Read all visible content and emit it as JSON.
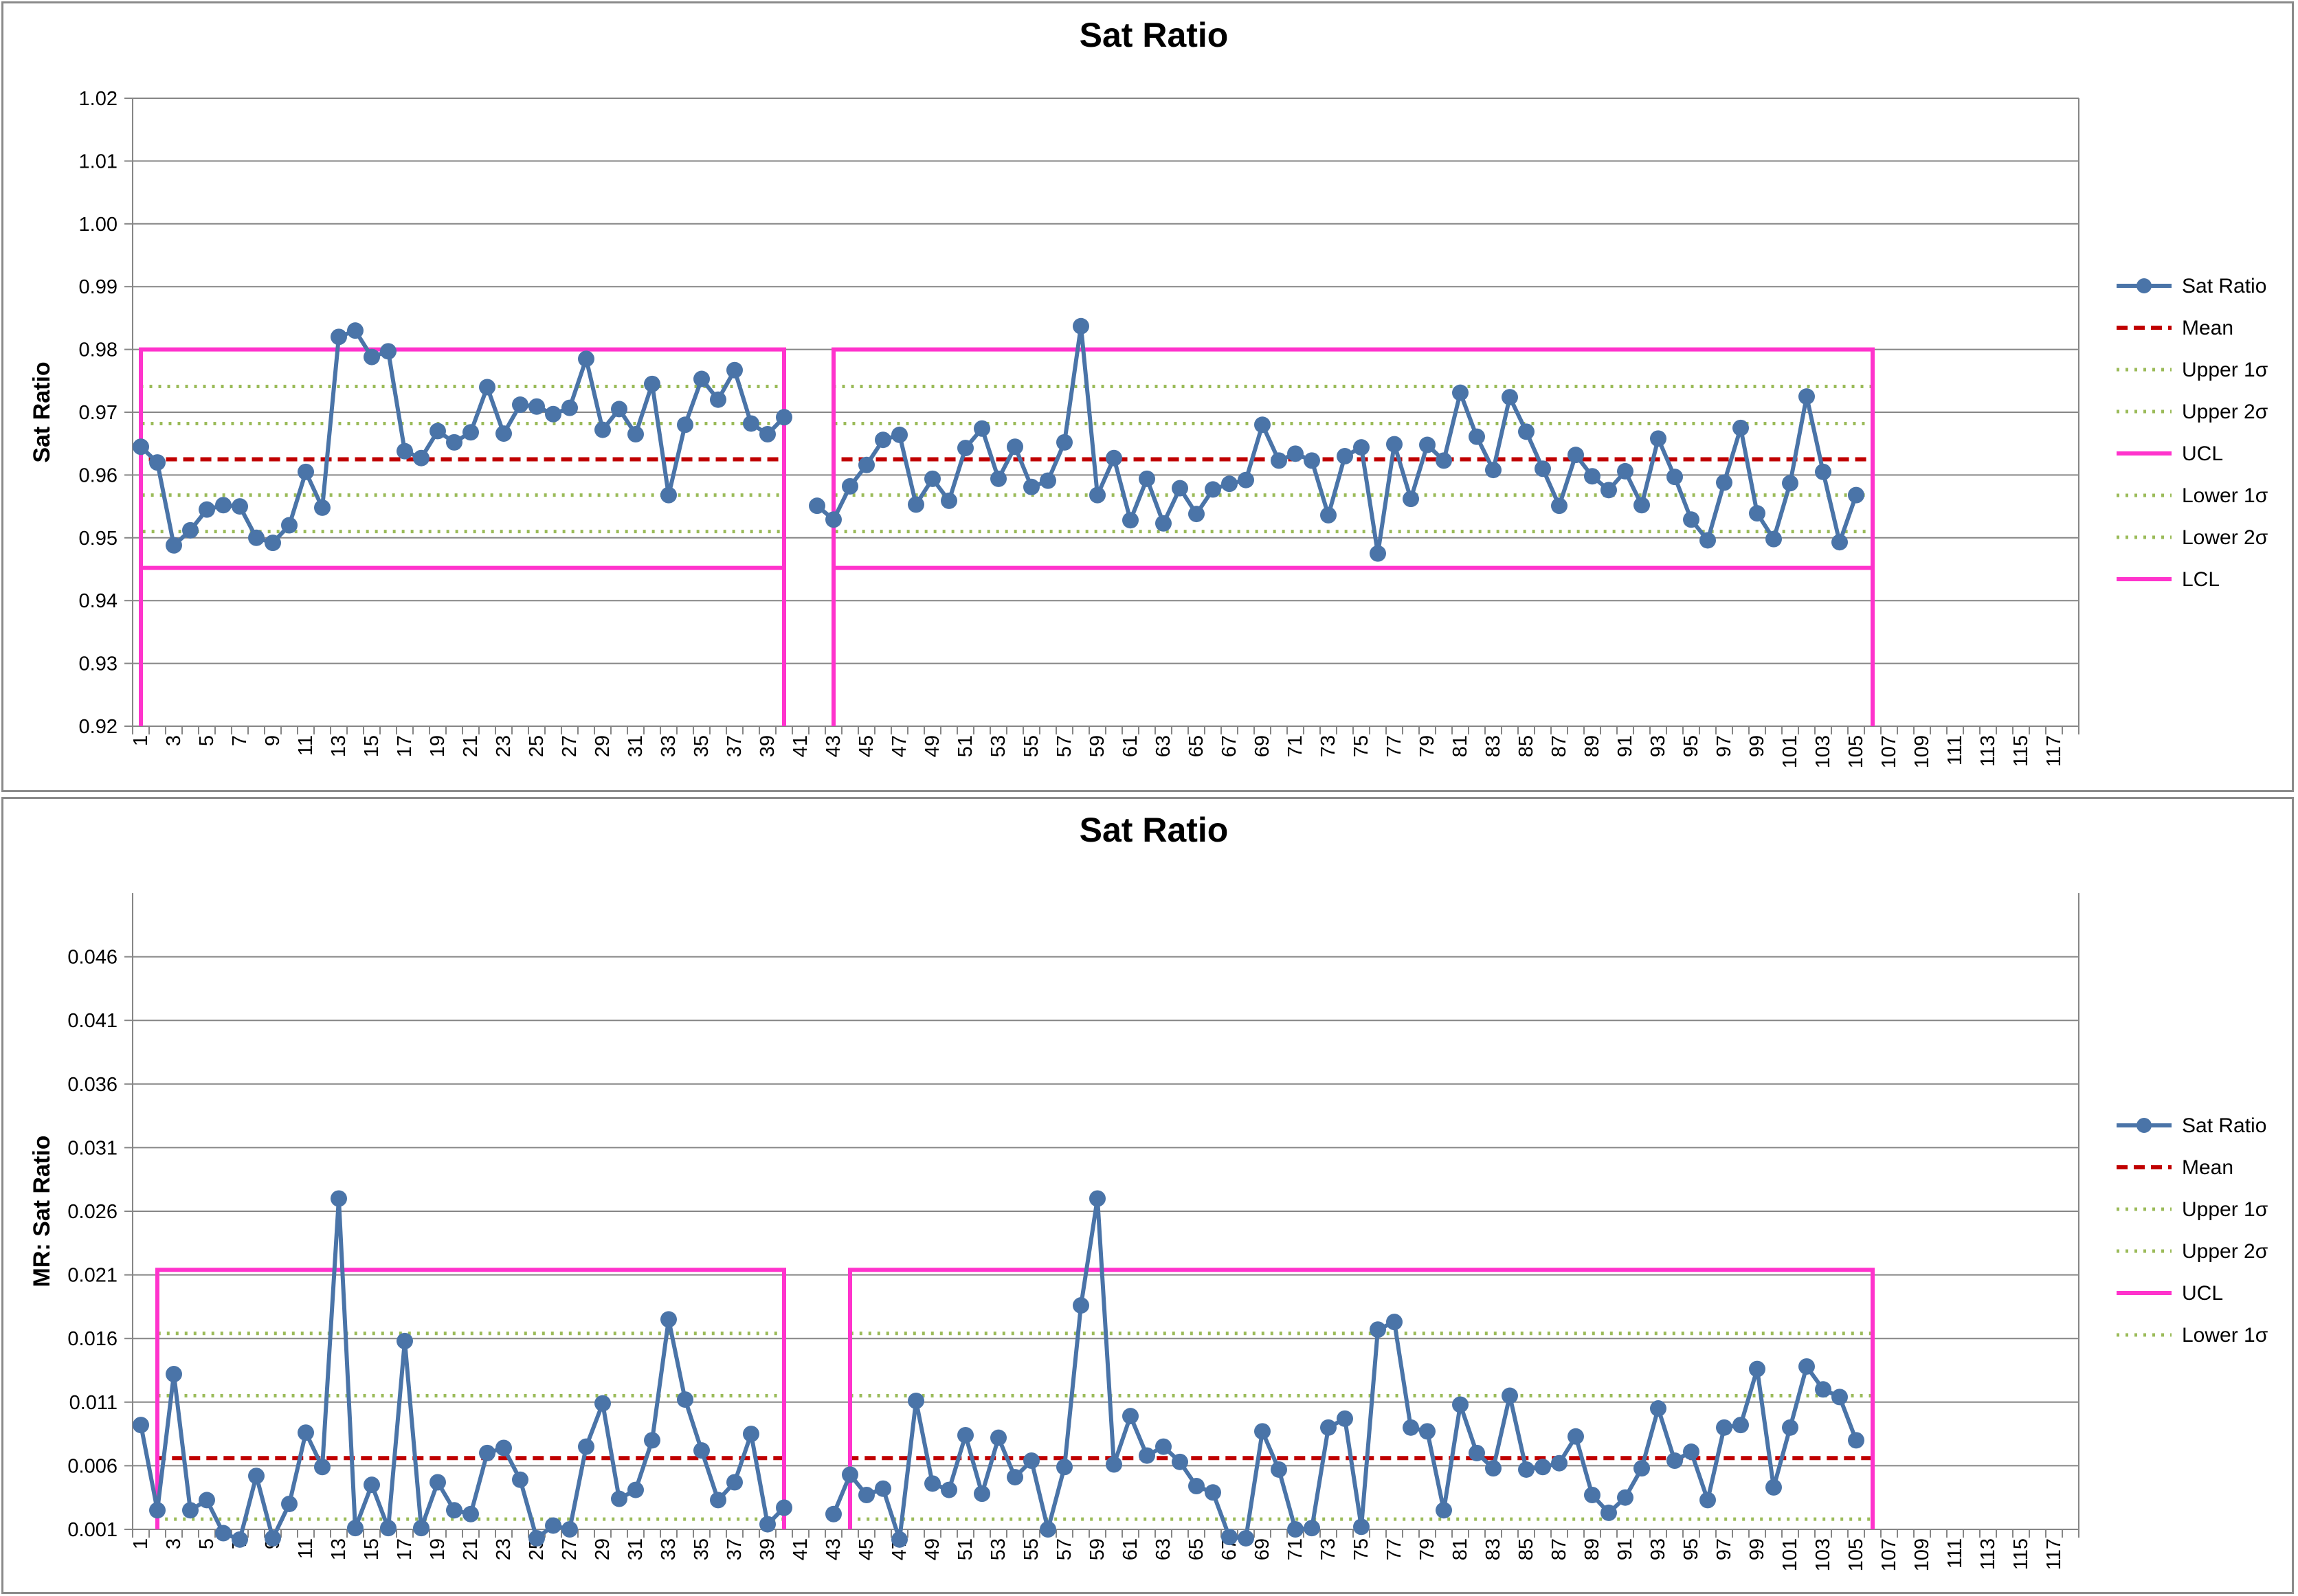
{
  "colors": {
    "series": "#4a74a8",
    "mean": "#c00000",
    "sigma": "#9bbb59",
    "limits": "#ff33cc",
    "grid": "#868686"
  },
  "chart_data": [
    {
      "type": "line",
      "title": "Sat Ratio",
      "ylabel": "Sat Ratio",
      "xlabel": "",
      "ylim": [
        0.92,
        1.02
      ],
      "yticks": [
        "0.92",
        "0.93",
        "0.94",
        "0.95",
        "0.96",
        "0.97",
        "0.98",
        "0.99",
        "1.00",
        "1.01",
        "1.02"
      ],
      "xticks": [
        "1",
        "3",
        "5",
        "7",
        "9",
        "11",
        "13",
        "15",
        "17",
        "19",
        "21",
        "23",
        "25",
        "27",
        "29",
        "31",
        "33",
        "35",
        "37",
        "39",
        "41",
        "43",
        "45",
        "47",
        "49",
        "51",
        "53",
        "55",
        "57",
        "59",
        "61",
        "63",
        "65",
        "67",
        "69",
        "71",
        "73",
        "75",
        "77",
        "79",
        "81",
        "83",
        "85",
        "87",
        "89",
        "91",
        "93",
        "95",
        "97",
        "99",
        "101",
        "103",
        "105",
        "107",
        "109",
        "111",
        "113",
        "115",
        "117"
      ],
      "x_categories": 118,
      "grid": true,
      "legend_position": "right",
      "series": [
        {
          "name": "Sat Ratio",
          "style": "line-markers",
          "segments": [
            {
              "x_start": 1,
              "values": [
                0.9645,
                0.962,
                0.9488,
                0.9512,
                0.9545,
                0.9552,
                0.955,
                0.95,
                0.9492,
                0.952,
                0.9605,
                0.9548,
                0.982,
                0.983,
                0.9788,
                0.9797,
                0.9638,
                0.9627,
                0.967,
                0.9652,
                0.9668,
                0.974,
                0.9666,
                0.9712,
                0.9709,
                0.9697,
                0.9707,
                0.9785,
                0.9672,
                0.9705,
                0.9665,
                0.9745,
                0.9568,
                0.968,
                0.9753,
                0.972,
                0.9767,
                0.9682,
                0.9665,
                0.9692
              ]
            },
            {
              "x_start": 42,
              "values": [
                0.9551,
                0.9529,
                0.9582,
                0.9616,
                0.9656,
                0.9664,
                0.9553,
                0.9594,
                0.9559,
                0.9643,
                0.9674,
                0.9594,
                0.9645,
                0.9581,
                0.9591,
                0.9652,
                0.9837,
                0.9568,
                0.9627,
                0.9528,
                0.9594,
                0.9523,
                0.9579,
                0.9538,
                0.9577,
                0.9586,
                0.9592,
                0.968,
                0.9623,
                0.9634,
                0.9623,
                0.9536,
                0.963,
                0.9644,
                0.9475,
                0.9649,
                0.9562,
                0.9648,
                0.9623,
                0.9731,
                0.9661,
                0.9608,
                0.9724,
                0.9669,
                0.961,
                0.9551,
                0.9632,
                0.9598,
                0.9576,
                0.9606,
                0.9552,
                0.9658,
                0.9597,
                0.9529,
                0.9496,
                0.9588,
                0.9675,
                0.9539,
                0.9498,
                0.9587,
                0.9725,
                0.9605,
                0.9493,
                0.9568
              ]
            }
          ]
        },
        {
          "name": "Mean",
          "style": "dashed",
          "value": 0.9625
        },
        {
          "name": "Upper 1σ",
          "style": "dotted",
          "value": 0.9682
        },
        {
          "name": "Upper 2σ",
          "style": "dotted",
          "value": 0.9741
        },
        {
          "name": "UCL",
          "style": "solid",
          "value": 0.98
        },
        {
          "name": "Lower 1σ",
          "style": "dotted",
          "value": 0.9568
        },
        {
          "name": "Lower 2σ",
          "style": "dotted",
          "value": 0.951
        },
        {
          "name": "LCL",
          "style": "solid",
          "value": 0.9452
        }
      ],
      "limit_segments": [
        [
          1,
          40
        ],
        [
          43,
          106
        ]
      ]
    },
    {
      "type": "line",
      "title": "Sat Ratio",
      "ylabel": "MR: Sat Ratio",
      "xlabel": "",
      "ylim": [
        0.001,
        0.051
      ],
      "yticks": [
        "0.001",
        "0.006",
        "0.011",
        "0.016",
        "0.021",
        "0.026",
        "0.031",
        "0.036",
        "0.041",
        "0.046"
      ],
      "xticks": [
        "1",
        "3",
        "5",
        "7",
        "9",
        "11",
        "13",
        "15",
        "17",
        "19",
        "21",
        "23",
        "25",
        "27",
        "29",
        "31",
        "33",
        "35",
        "37",
        "39",
        "41",
        "43",
        "45",
        "47",
        "49",
        "51",
        "53",
        "55",
        "57",
        "59",
        "61",
        "63",
        "65",
        "67",
        "69",
        "71",
        "73",
        "75",
        "77",
        "79",
        "81",
        "83",
        "85",
        "87",
        "89",
        "91",
        "93",
        "95",
        "97",
        "99",
        "101",
        "103",
        "105",
        "107",
        "109",
        "111",
        "113",
        "115",
        "117"
      ],
      "x_categories": 118,
      "grid": true,
      "legend_position": "right",
      "series": [
        {
          "name": "Sat Ratio",
          "style": "line-markers",
          "segments": [
            {
              "x_start": 1,
              "values": [
                0.0092,
                0.0025,
                0.0132,
                0.0025,
                0.0033,
                0.0007,
                0.0002,
                0.0052,
                0.0003,
                0.003,
                0.0086,
                0.0059,
                0.027,
                0.0011,
                0.0045,
                0.0011,
                0.0158,
                0.0011,
                0.0047,
                0.0025,
                0.0022,
                0.007,
                0.0074,
                0.0049,
                0.0003,
                0.0013,
                0.001,
                0.0075,
                0.0109,
                0.0034,
                0.0041,
                0.008,
                0.0175,
                0.0112,
                0.0072,
                0.0033,
                0.0047,
                0.0085,
                0.0014,
                0.0027
              ]
            },
            {
              "x_start": 43,
              "values": [
                0.0022,
                0.0053,
                0.0037,
                0.0042,
                0.0002,
                0.0111,
                0.0046,
                0.0041,
                0.0084,
                0.0038,
                0.0082,
                0.0051,
                0.0064,
                0.001,
                0.0059,
                0.0186,
                0.027,
                0.0061,
                0.0099,
                0.0068,
                0.0075,
                0.0063,
                0.0044,
                0.0039,
                0.0004,
                0.0003,
                0.0087,
                0.0057,
                0.001,
                0.0011,
                0.009,
                0.0097,
                0.0012,
                0.0167,
                0.0173,
                0.009,
                0.0087,
                0.0025,
                0.0108,
                0.007,
                0.0058,
                0.0115,
                0.0057,
                0.0059,
                0.0062,
                0.0083,
                0.0037,
                0.0023,
                0.0035,
                0.0058,
                0.0105,
                0.0064,
                0.0071,
                0.0033,
                0.009,
                0.0092,
                0.0136,
                0.0043,
                0.009,
                0.0138,
                0.012,
                0.0114,
                0.008
              ]
            }
          ]
        },
        {
          "name": "Mean",
          "style": "dashed",
          "value": 0.0066
        },
        {
          "name": "Upper 1σ",
          "style": "dotted",
          "value": 0.0115
        },
        {
          "name": "Upper 2σ",
          "style": "dotted",
          "value": 0.0164
        },
        {
          "name": "UCL",
          "style": "solid",
          "value": 0.0214
        },
        {
          "name": "Lower 1σ",
          "style": "dotted",
          "value": 0.0018
        }
      ],
      "limit_segments": [
        [
          2,
          40
        ],
        [
          44,
          106
        ]
      ]
    }
  ]
}
